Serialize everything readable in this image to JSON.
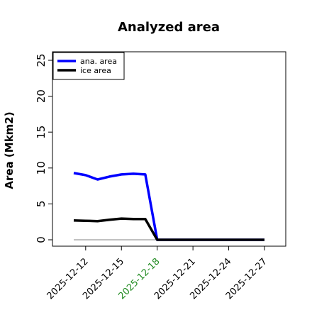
{
  "chart_data": {
    "type": "line",
    "title": "Analyzed area",
    "xlabel": "",
    "ylabel": "Area (Mkm2)",
    "ylim": [
      0,
      26
    ],
    "yticks": [
      0,
      5,
      10,
      15,
      20,
      25
    ],
    "xticks": [
      "2025-12-12",
      "2025-12-15",
      "2025-12-18",
      "2025-12-21",
      "2025-12-24",
      "2025-12-27"
    ],
    "highlight_tick": "2025-12-18",
    "highlight_color": "#228b22",
    "grid": false,
    "legend_position": "top-left",
    "x": [
      "2025-12-11",
      "2025-12-12",
      "2025-12-13",
      "2025-12-14",
      "2025-12-15",
      "2025-12-16",
      "2025-12-17",
      "2025-12-18",
      "2025-12-19",
      "2025-12-20",
      "2025-12-21",
      "2025-12-22",
      "2025-12-23",
      "2025-12-24",
      "2025-12-25",
      "2025-12-26",
      "2025-12-27"
    ],
    "series": [
      {
        "name": "ana. area",
        "color": "#0000ff",
        "values": [
          9.3,
          9.0,
          8.4,
          8.8,
          9.1,
          9.2,
          9.1,
          0.0,
          0.0,
          0.0,
          0.0,
          0.0,
          0.0,
          0.0,
          0.0,
          0.0,
          0.0
        ]
      },
      {
        "name": "ice area",
        "color": "#000000",
        "values": [
          2.7,
          2.65,
          2.6,
          2.8,
          2.95,
          2.9,
          2.9,
          0.0,
          0.0,
          0.0,
          0.0,
          0.0,
          0.0,
          0.0,
          0.0,
          0.0,
          0.0
        ]
      }
    ],
    "reference_line": {
      "y": 0,
      "color": "#808080"
    }
  }
}
